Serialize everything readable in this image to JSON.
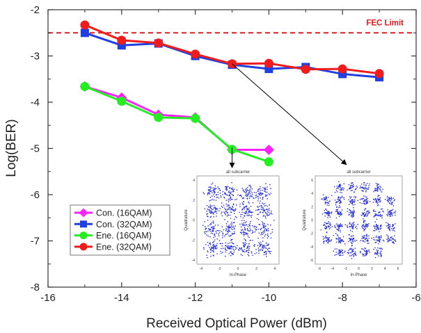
{
  "chart_data": {
    "type": "line",
    "xlabel": "Received Optical Power (dBm)",
    "ylabel": "Log(BER)",
    "xlim": [
      -16,
      -6
    ],
    "ylim": [
      -8,
      -2
    ],
    "xticks": [
      -16,
      -14,
      -12,
      -10,
      -8,
      -6
    ],
    "yticks": [
      -8,
      -7,
      -6,
      -5,
      -4,
      -3,
      -2
    ],
    "xtick_labels": [
      "-16",
      "-14",
      "-12",
      "-10",
      "-8",
      "-6"
    ],
    "ytick_labels": [
      "-8",
      "-7",
      "-6",
      "-5",
      "-4",
      "-3",
      "-2"
    ],
    "grid": false,
    "legend_position": "bottom-left",
    "series": [
      {
        "name": "Con. (16QAM)",
        "color": "#ff22ff",
        "marker": "diamond",
        "x": [
          -15,
          -14,
          -13,
          -12,
          -11,
          -10
        ],
        "y": [
          -3.66,
          -3.9,
          -4.27,
          -4.33,
          -5.03,
          -5.03
        ]
      },
      {
        "name": "Con. (32QAM)",
        "color": "#1f3fe0",
        "marker": "square",
        "x": [
          -15,
          -14,
          -13,
          -12,
          -11,
          -10,
          -9,
          -8,
          -7
        ],
        "y": [
          -2.5,
          -2.77,
          -2.73,
          -3.0,
          -3.19,
          -3.28,
          -3.24,
          -3.39,
          -3.46
        ]
      },
      {
        "name": "Ene. (16QAM)",
        "color": "#22ee22",
        "marker": "circle",
        "x": [
          -15,
          -14,
          -13,
          -12,
          -11,
          -10
        ],
        "y": [
          -3.66,
          -3.98,
          -4.33,
          -4.35,
          -5.02,
          -5.29
        ]
      },
      {
        "name": "Ene. (32QAM)",
        "color": "#ee1c1c",
        "marker": "circle",
        "x": [
          -15,
          -14,
          -13,
          -12,
          -11,
          -10,
          -9,
          -8,
          -7
        ],
        "y": [
          -2.33,
          -2.66,
          -2.72,
          -2.96,
          -3.17,
          -3.16,
          -3.29,
          -3.28,
          -3.38
        ]
      }
    ],
    "fec_limit": {
      "label": "FEC Limit",
      "y": -2.5,
      "color": "#e41a1c"
    },
    "insets": [
      {
        "title": "all subcarrier",
        "xlabel": "In-Phase",
        "ylabel": "Quadrature",
        "constellation": "16QAM",
        "ticks": [
          "-4",
          "-2",
          "0",
          "2",
          "4"
        ]
      },
      {
        "title": "all subcarrier",
        "xlabel": "In-Phase",
        "ylabel": "Quadrature",
        "constellation": "32QAM",
        "ticks": [
          "-6",
          "-4",
          "-2",
          "0",
          "2",
          "4",
          "6"
        ]
      }
    ]
  }
}
